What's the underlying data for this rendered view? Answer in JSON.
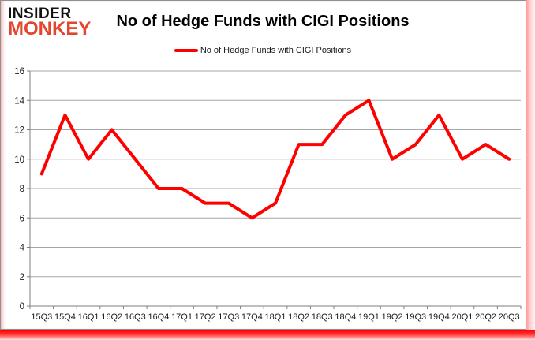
{
  "logo": {
    "line1": "INSIDER",
    "line2": "MONKEY"
  },
  "header": {
    "title": "No of Hedge Funds with CIGI Positions"
  },
  "legend": {
    "label": "No of Hedge Funds with CIGI Positions"
  },
  "colors": {
    "series_line": "#ff0000",
    "gridline": "#a6a6a6",
    "axis": "#7f7f7f",
    "tick_text": "#1a1a1a",
    "logo_accent": "#e2462e",
    "frame_glow": "#ff0000"
  },
  "chart_data": {
    "type": "line",
    "title": "No of Hedge Funds with CIGI Positions",
    "series": [
      {
        "name": "No of Hedge Funds with CIGI Positions",
        "values": [
          9,
          13,
          10,
          12,
          10,
          8,
          8,
          7,
          7,
          6,
          7,
          11,
          11,
          13,
          14,
          10,
          11,
          13,
          10,
          11,
          10
        ],
        "color": "#ff0000"
      }
    ],
    "categories": [
      "15Q3",
      "15Q4",
      "16Q1",
      "16Q2",
      "16Q3",
      "16Q4",
      "17Q1",
      "17Q2",
      "17Q3",
      "17Q4",
      "18Q1",
      "18Q2",
      "18Q3",
      "18Q4",
      "19Q1",
      "19Q2",
      "19Q3",
      "19Q4",
      "20Q1",
      "20Q2",
      "20Q3"
    ],
    "xlabel": "",
    "ylabel": "",
    "ylim": [
      0,
      16
    ],
    "ytick_interval": 2,
    "yticks": [
      0,
      2,
      4,
      6,
      8,
      10,
      12,
      14,
      16
    ],
    "grid": true,
    "legend_position": "top-center"
  }
}
